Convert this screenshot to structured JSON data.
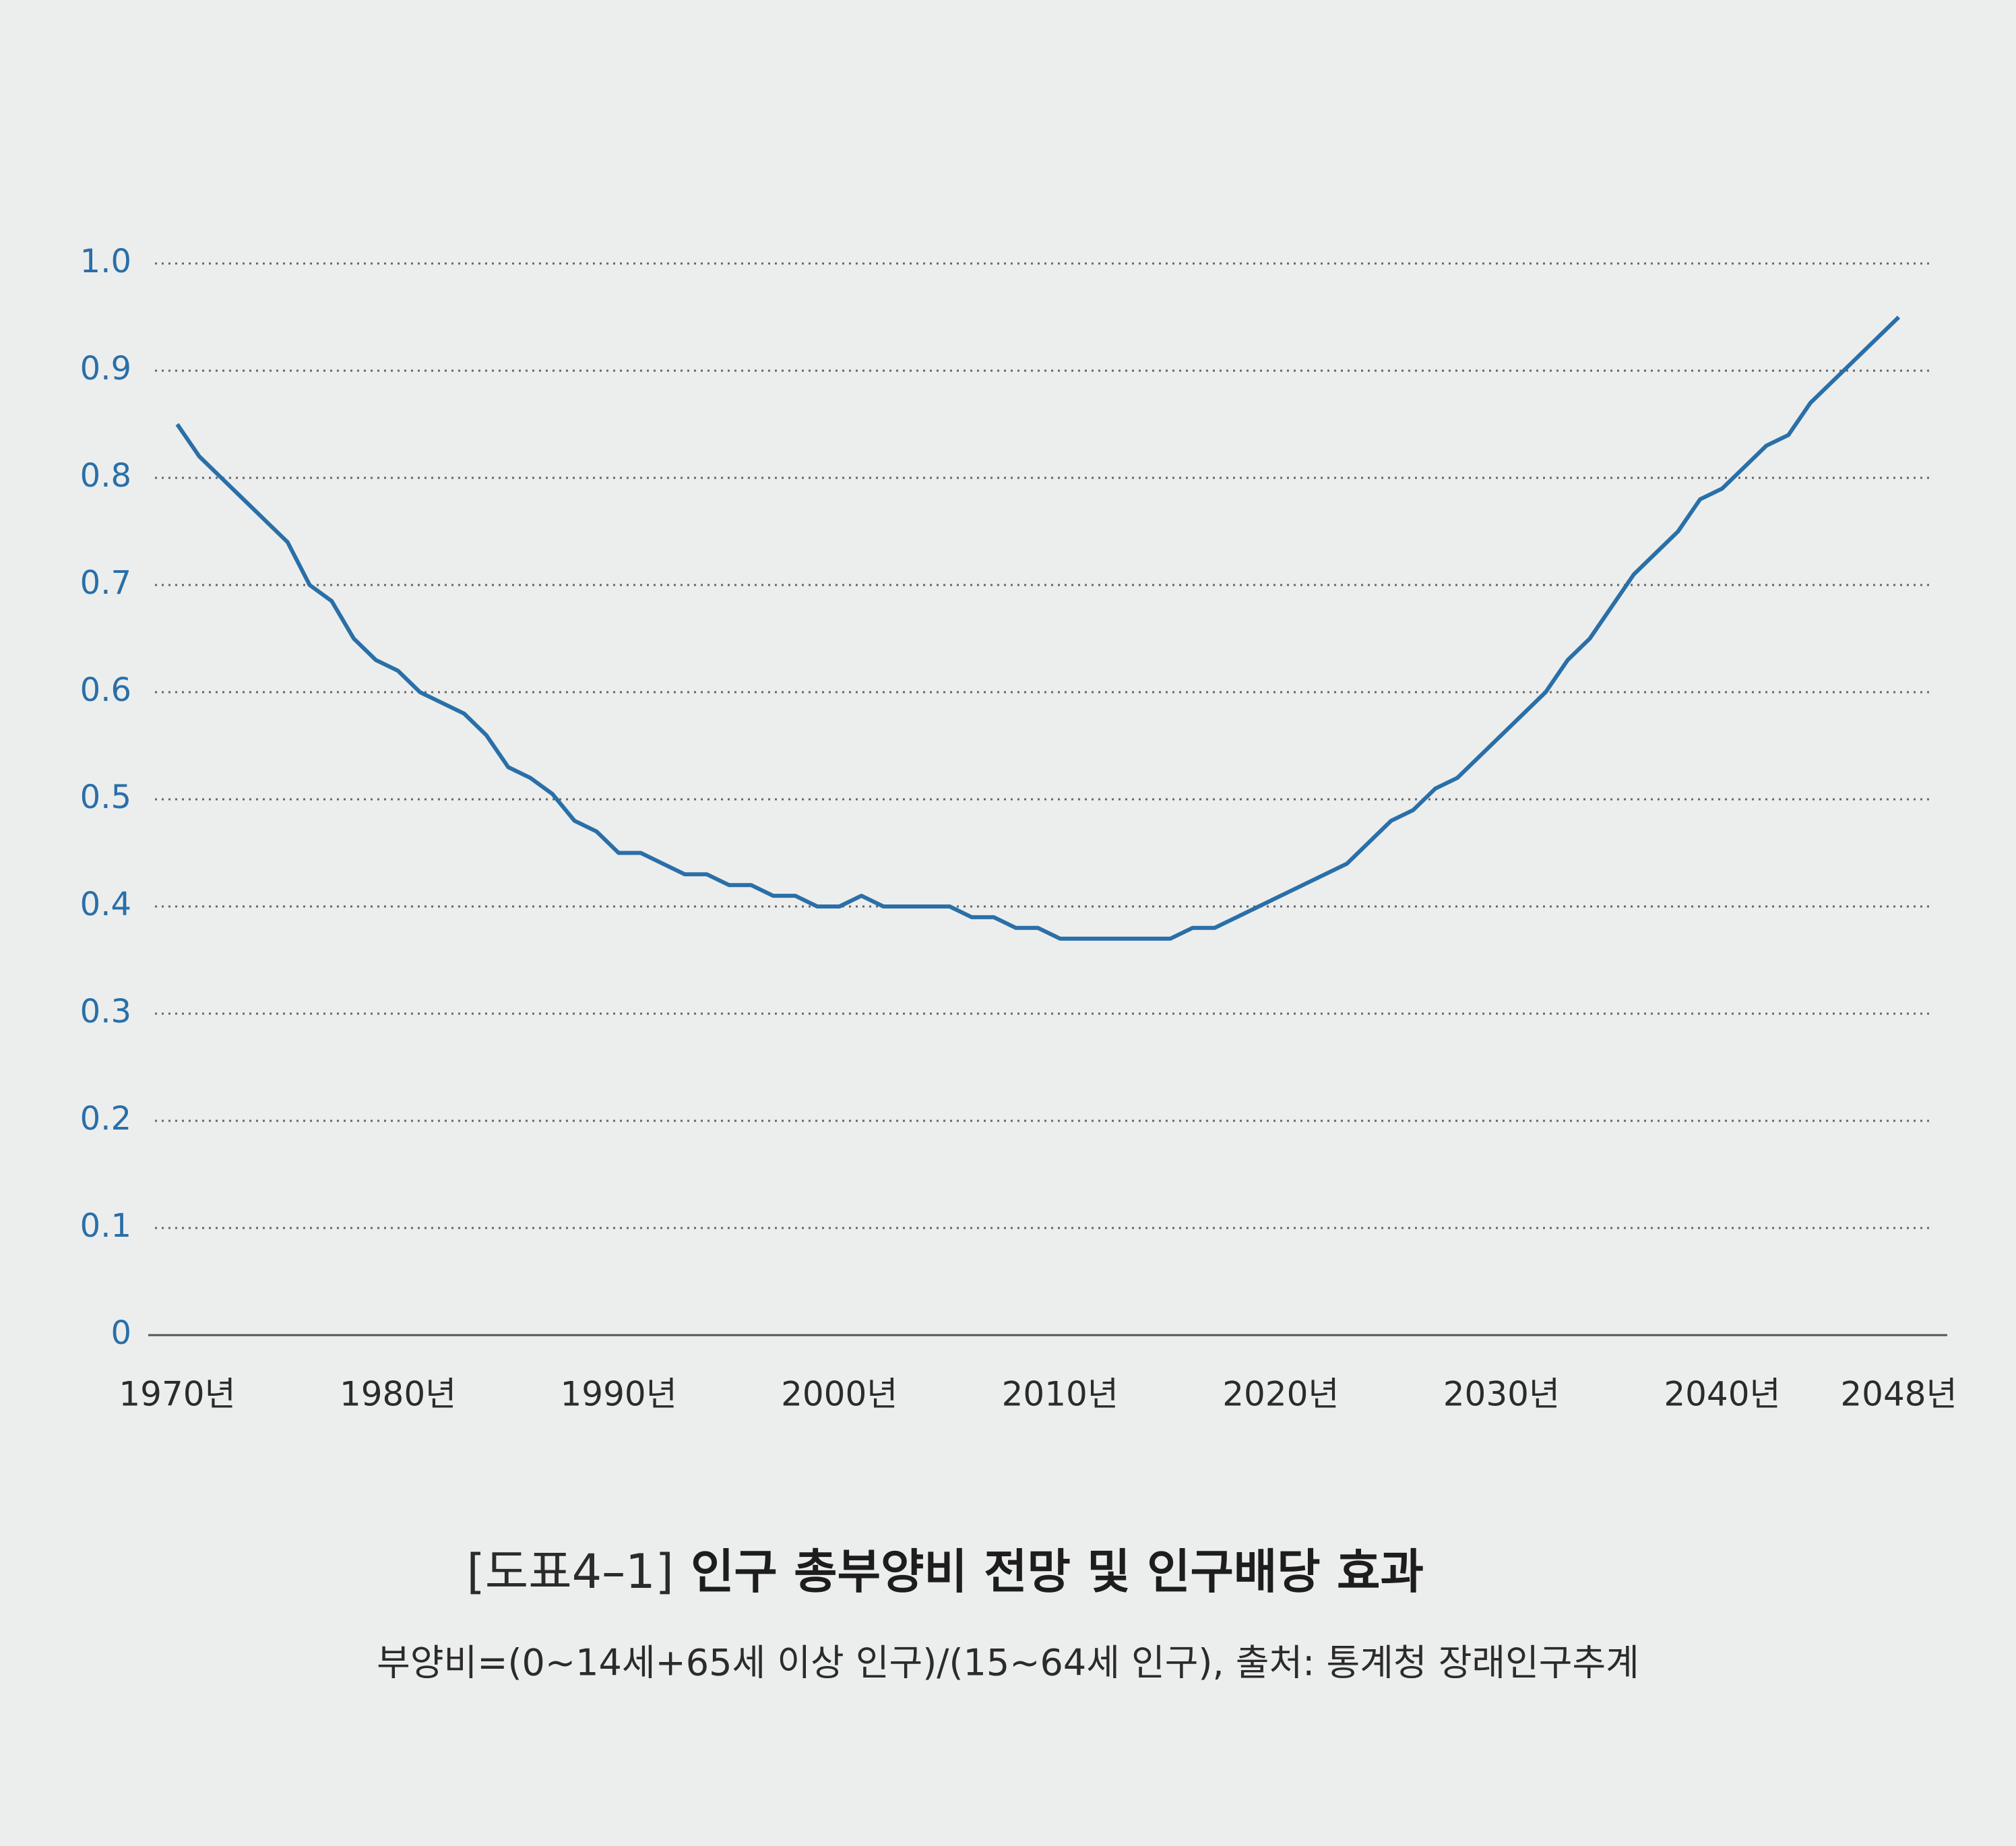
{
  "chart_data": {
    "type": "line",
    "figure_number": "[도표4–1]",
    "title": "인구 총부양비 전망 및 인구배당 효과",
    "subtitle": "부양비=(0~14세+65세 이상 인구)/(15~64세 인구), 출처: 통계청 장래인구추계",
    "x": [
      1970,
      1971,
      1972,
      1973,
      1974,
      1975,
      1976,
      1977,
      1978,
      1979,
      1980,
      1981,
      1982,
      1983,
      1984,
      1985,
      1986,
      1987,
      1988,
      1989,
      1990,
      1991,
      1992,
      1993,
      1994,
      1995,
      1996,
      1997,
      1998,
      1999,
      2000,
      2001,
      2002,
      2003,
      2004,
      2005,
      2006,
      2007,
      2008,
      2009,
      2010,
      2011,
      2012,
      2013,
      2014,
      2015,
      2016,
      2017,
      2018,
      2019,
      2020,
      2021,
      2022,
      2023,
      2024,
      2025,
      2026,
      2027,
      2028,
      2029,
      2030,
      2031,
      2032,
      2033,
      2034,
      2035,
      2036,
      2037,
      2038,
      2039,
      2040,
      2041,
      2042,
      2043,
      2044,
      2045,
      2046,
      2047,
      2048
    ],
    "series": [
      {
        "color": "#2a6fa8",
        "values": [
          0.85,
          0.82,
          0.8,
          0.78,
          0.76,
          0.74,
          0.7,
          0.685,
          0.65,
          0.63,
          0.62,
          0.6,
          0.59,
          0.58,
          0.56,
          0.53,
          0.52,
          0.505,
          0.48,
          0.47,
          0.45,
          0.45,
          0.44,
          0.43,
          0.43,
          0.42,
          0.42,
          0.41,
          0.41,
          0.4,
          0.4,
          0.41,
          0.4,
          0.4,
          0.4,
          0.4,
          0.39,
          0.39,
          0.38,
          0.38,
          0.37,
          0.37,
          0.37,
          0.37,
          0.37,
          0.37,
          0.38,
          0.38,
          0.39,
          0.4,
          0.41,
          0.42,
          0.43,
          0.44,
          0.46,
          0.48,
          0.49,
          0.51,
          0.52,
          0.54,
          0.56,
          0.58,
          0.6,
          0.63,
          0.65,
          0.68,
          0.71,
          0.73,
          0.75,
          0.78,
          0.79,
          0.81,
          0.83,
          0.84,
          0.87,
          0.89,
          0.91,
          0.93,
          0.95
        ]
      }
    ],
    "xlim": [
      1970,
      2048
    ],
    "xticks": [
      {
        "value": 1970,
        "label": "1970년"
      },
      {
        "value": 1980,
        "label": "1980년"
      },
      {
        "value": 1990,
        "label": "1990년"
      },
      {
        "value": 2000,
        "label": "2000년"
      },
      {
        "value": 2010,
        "label": "2010년"
      },
      {
        "value": 2020,
        "label": "2020년"
      },
      {
        "value": 2030,
        "label": "2030년"
      },
      {
        "value": 2040,
        "label": "2040년"
      },
      {
        "value": 2048,
        "label": "2048년"
      }
    ],
    "ylim": [
      0,
      1
    ],
    "yticks": [
      0,
      0.1,
      0.2,
      0.3,
      0.4,
      0.5,
      0.6,
      0.7,
      0.8,
      0.9,
      {
        "value": 1,
        "label": "1.0"
      }
    ],
    "grid": true,
    "tick_color": "#2a6fa8"
  }
}
